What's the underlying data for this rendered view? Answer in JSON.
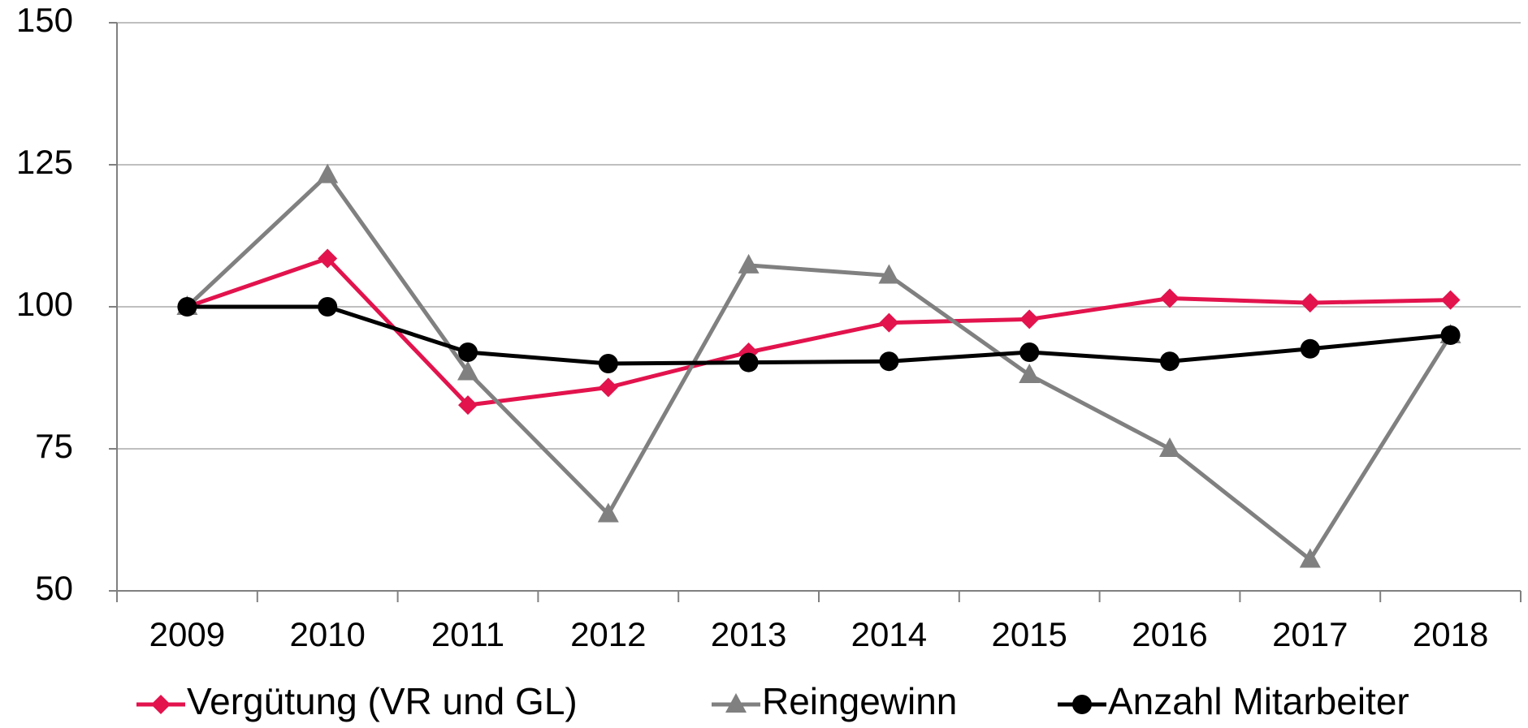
{
  "chart_data": {
    "type": "line",
    "categories": [
      "2009",
      "2010",
      "2011",
      "2012",
      "2013",
      "2014",
      "2015",
      "2016",
      "2017",
      "2018"
    ],
    "series": [
      {
        "name": "Vergütung (VR und GL)",
        "color": "#e2134d",
        "marker": "diamond",
        "values": [
          100,
          108.5,
          82.7,
          85.8,
          92,
          97.2,
          97.8,
          101.5,
          100.7,
          101.2
        ]
      },
      {
        "name": "Reingewinn",
        "color": "#808080",
        "marker": "triangle",
        "values": [
          100,
          123.2,
          88.5,
          63.5,
          107.3,
          105.5,
          88,
          75,
          55.5,
          95
        ]
      },
      {
        "name": "Anzahl Mitarbeiter",
        "color": "#000000",
        "marker": "circle",
        "values": [
          100,
          100,
          92,
          90,
          90.2,
          90.4,
          92,
          90.4,
          92.6,
          95
        ]
      }
    ],
    "ylim": [
      50,
      150
    ],
    "yticks": [
      50,
      75,
      100,
      125,
      150
    ],
    "grid": true,
    "legend": "bottom"
  }
}
